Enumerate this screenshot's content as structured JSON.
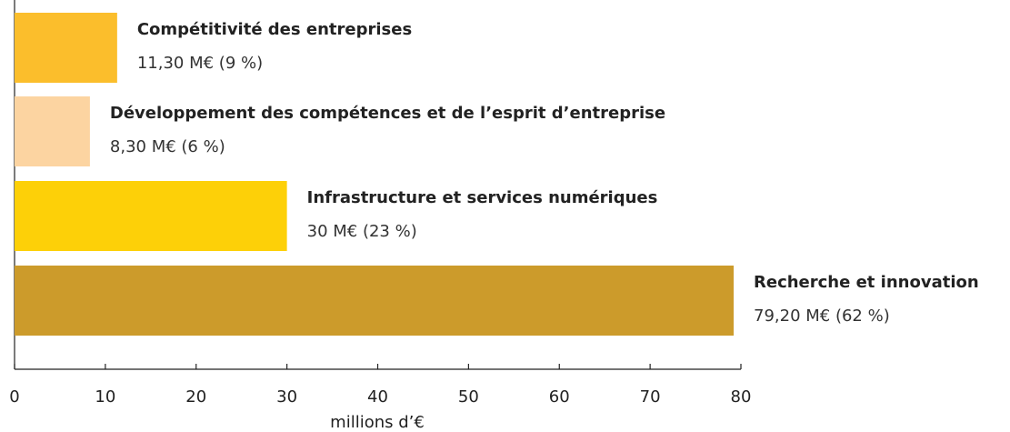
{
  "chart_data": {
    "type": "barh",
    "categories": [
      "Compétitivité des entreprises",
      "Développement des compétences et de l’esprit d’entreprise",
      "Infrastructure et services numériques",
      "Recherche et innovation"
    ],
    "values": [
      11.3,
      8.3,
      30,
      79.2
    ],
    "value_labels": [
      "11,30 M€ (9 %)",
      "8,30 M€ (6 %)",
      "30 M€ (23 %)",
      "79,20 M€ (62 %)"
    ],
    "colors": [
      "#fbbe2c",
      "#fcd4a1",
      "#fdd008",
      "#cc9b2b"
    ],
    "xlabel": "millions d’€",
    "xlim": [
      0,
      80
    ],
    "xticks": [
      0,
      10,
      20,
      30,
      40,
      50,
      60,
      70,
      80
    ]
  }
}
